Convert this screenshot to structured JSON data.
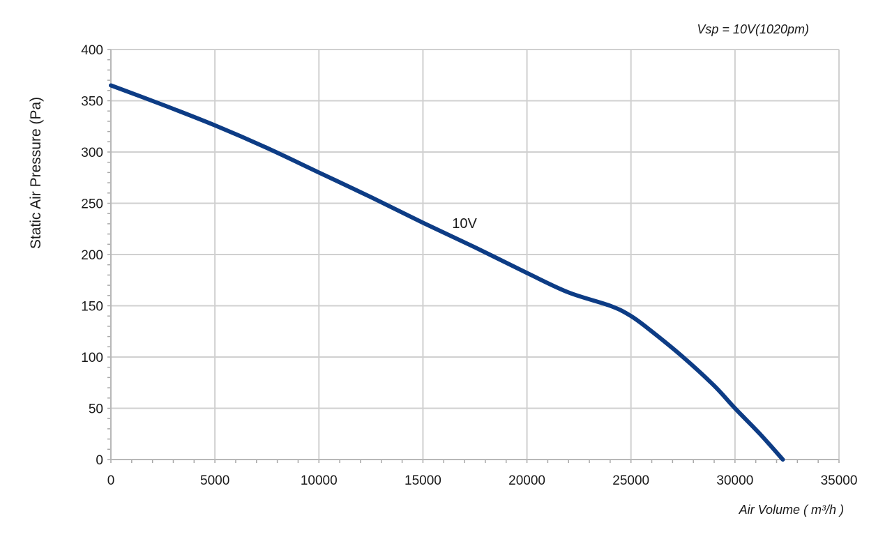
{
  "chart_data": {
    "type": "line",
    "annotation_top_right": "Vsp = 10V(1020pm)",
    "xlabel": "Air Volume ( m³/h )",
    "ylabel": "Static Air Pressure  (Pa)",
    "xlim": [
      0,
      35000
    ],
    "ylim": [
      0,
      400
    ],
    "x_ticks": [
      0,
      5000,
      10000,
      15000,
      20000,
      25000,
      30000,
      35000
    ],
    "y_ticks": [
      0,
      50,
      100,
      150,
      200,
      250,
      300,
      350,
      400
    ],
    "x_tick_labels": [
      "0",
      "5000",
      "10000",
      "15000",
      "20000",
      "25000",
      "30000",
      "35000"
    ],
    "y_tick_labels": [
      "0",
      "50",
      "100",
      "150",
      "200",
      "250",
      "300",
      "350",
      "400"
    ],
    "grid": true,
    "series": [
      {
        "name": "10V",
        "color": "#0d3c85",
        "points": [
          [
            0,
            365
          ],
          [
            2500,
            346
          ],
          [
            5000,
            326
          ],
          [
            7500,
            304
          ],
          [
            10000,
            280
          ],
          [
            12500,
            256
          ],
          [
            15000,
            231
          ],
          [
            17500,
            207
          ],
          [
            20000,
            182
          ],
          [
            22000,
            163
          ],
          [
            24000,
            150
          ],
          [
            25000,
            140
          ],
          [
            26000,
            125
          ],
          [
            27500,
            100
          ],
          [
            29000,
            72
          ],
          [
            30000,
            50
          ],
          [
            31200,
            25
          ],
          [
            32300,
            0
          ]
        ]
      }
    ],
    "series_label_text": "10V",
    "series_label_at": [
      17000,
      226
    ]
  }
}
